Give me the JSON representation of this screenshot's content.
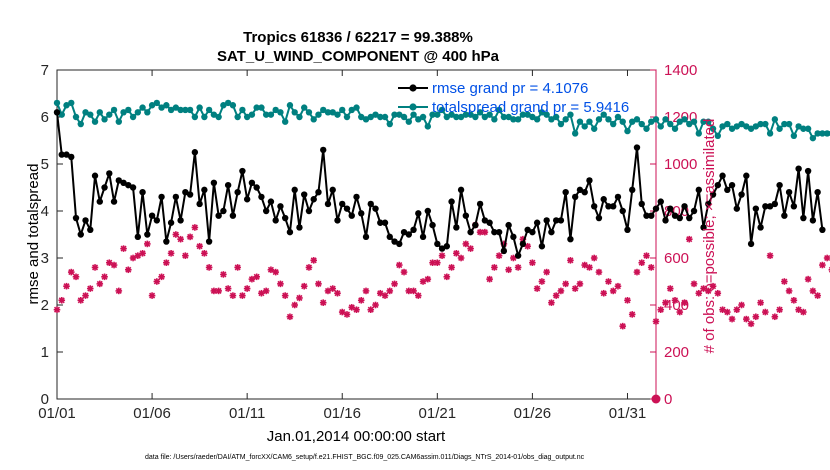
{
  "chart_data": {
    "type": "line",
    "title_line1": "Tropics 61836 / 62217 = 99.388%",
    "title_line2": "SAT_U_WIND_COMPONENT @ 400 hPa",
    "xlabel": "Jan.01,2014 00:00:00 start",
    "ylabel_left": "rmse and totalspread",
    "ylabel_right": "# of obs: o=possible; ×=assimilated",
    "x_ticks": [
      "01/01",
      "01/06",
      "01/11",
      "01/16",
      "01/21",
      "01/26",
      "01/31"
    ],
    "x_tick_days": [
      0,
      5,
      10,
      15,
      20,
      25,
      30
    ],
    "xlim_days": [
      0,
      31.5
    ],
    "y_left_ticks": [
      "0",
      "1",
      "2",
      "3",
      "4",
      "5",
      "6",
      "7"
    ],
    "ylim_left": [
      0,
      7
    ],
    "y_right_ticks": [
      "0",
      "200",
      "400",
      "600",
      "800",
      "1000",
      "1200",
      "1400"
    ],
    "ylim_right": [
      0,
      1400
    ],
    "legend": [
      "rmse grand pr = 4.1076",
      "totalspread grand pr = 5.9416"
    ],
    "colors": {
      "rmse": "#000000",
      "totalspread": "#008080",
      "obs_count": "#cc1155",
      "right_axis": "#cc1155",
      "legend_text": "#0050e6"
    },
    "series": [
      {
        "name": "rmse",
        "axis": "left",
        "values": [
          6.1,
          5.2,
          5.2,
          5.15,
          3.85,
          3.5,
          3.8,
          3.6,
          4.75,
          4.2,
          4.5,
          4.8,
          4.2,
          4.65,
          4.6,
          4.55,
          4.5,
          3.45,
          4.4,
          3.5,
          3.9,
          3.8,
          4.3,
          3.35,
          3.75,
          4.3,
          3.8,
          4.4,
          4.35,
          5.25,
          4.15,
          4.45,
          3.35,
          4.6,
          3.9,
          4.0,
          4.55,
          3.9,
          4.4,
          4.85,
          4.25,
          4.6,
          4.5,
          4.3,
          4.0,
          4.2,
          3.8,
          4.1,
          3.85,
          3.55,
          4.45,
          3.65,
          4.35,
          4.0,
          4.25,
          4.4,
          5.3,
          4.15,
          4.45,
          3.8,
          4.15,
          4.05,
          3.9,
          4.3,
          3.95,
          3.45,
          4.15,
          4.05,
          3.75,
          3.75,
          3.45,
          3.35,
          3.3,
          3.55,
          3.5,
          3.6,
          3.95,
          3.45,
          4.0,
          3.7,
          3.3,
          3.2,
          3.25,
          4.2,
          3.65,
          4.45,
          3.9,
          3.55,
          3.7,
          4.15,
          3.8,
          3.75,
          3.55,
          3.55,
          3.15,
          3.7,
          3.45,
          3.05,
          3.3,
          3.6,
          3.55,
          3.75,
          3.25,
          3.8,
          3.55,
          3.8,
          3.8,
          4.4,
          3.4,
          4.3,
          4.45,
          4.4,
          4.65,
          4.1,
          3.85,
          4.25,
          4.1,
          4.1,
          4.3,
          4.0,
          3.6,
          4.45,
          5.35,
          4.15,
          3.9,
          3.9,
          4.05,
          4.2,
          3.8,
          4.05,
          3.9,
          3.85,
          4.1,
          3.85,
          4.0,
          4.45,
          3.65,
          4.15,
          4.35,
          4.55,
          4.75,
          4.45,
          4.55,
          4.05,
          4.35,
          4.75,
          3.3,
          4.05,
          3.65,
          4.1,
          4.1,
          4.15,
          4.55,
          3.9,
          4.4,
          4.1,
          4.9,
          3.85,
          4.85,
          3.8,
          4.4,
          3.6
        ]
      },
      {
        "name": "totalspread",
        "axis": "left",
        "values": [
          6.3,
          6.05,
          6.25,
          6.3,
          6.0,
          5.85,
          6.1,
          6.05,
          5.9,
          6.1,
          5.95,
          6.05,
          6.15,
          5.9,
          6.1,
          6.15,
          6.0,
          6.1,
          6.2,
          6.1,
          6.25,
          6.3,
          6.2,
          6.25,
          6.15,
          6.2,
          6.15,
          6.15,
          6.15,
          6.0,
          6.2,
          6.0,
          6.15,
          6.05,
          6.0,
          6.25,
          6.3,
          6.25,
          6.0,
          6.15,
          6.0,
          6.05,
          6.2,
          6.2,
          6.05,
          6.05,
          6.15,
          6.1,
          5.9,
          6.25,
          6.1,
          6.0,
          6.2,
          6.1,
          5.95,
          6.05,
          6.15,
          6.1,
          6.1,
          6.05,
          6.15,
          6.0,
          6.15,
          6.2,
          6.0,
          5.95,
          6.0,
          6.05,
          6.0,
          6.0,
          5.85,
          6.05,
          6.05,
          6.0,
          5.9,
          6.05,
          5.95,
          6.0,
          5.8,
          6.05,
          6.05,
          6.15,
          6.0,
          6.05,
          6.0,
          6.0,
          6.05,
          6.05,
          6.0,
          6.1,
          6.0,
          6.05,
          5.95,
          6.15,
          6.0,
          6.0,
          5.95,
          5.95,
          6.05,
          6.05,
          6.0,
          5.95,
          6.1,
          6.05,
          5.95,
          6.0,
          5.85,
          5.95,
          6.05,
          5.65,
          5.9,
          5.8,
          5.9,
          5.75,
          5.95,
          6.05,
          5.95,
          5.85,
          6.0,
          5.9,
          5.7,
          5.9,
          5.95,
          5.85,
          5.75,
          5.9,
          5.95,
          5.8,
          5.95,
          5.85,
          5.75,
          5.9,
          5.95,
          5.85,
          5.9,
          5.65,
          5.9,
          5.9,
          5.75,
          5.6,
          5.8,
          5.85,
          5.75,
          5.8,
          5.85,
          5.8,
          5.75,
          5.8,
          5.85,
          5.85,
          5.65,
          5.95,
          5.75,
          5.85,
          5.85,
          5.6,
          5.8,
          5.75,
          5.75,
          5.55,
          5.65,
          5.65,
          5.65,
          5.65
        ]
      },
      {
        "name": "obs_assimilated",
        "axis": "right",
        "values": [
          380,
          420,
          480,
          540,
          520,
          420,
          440,
          470,
          560,
          490,
          520,
          580,
          570,
          460,
          640,
          550,
          600,
          610,
          620,
          660,
          440,
          500,
          520,
          580,
          620,
          700,
          680,
          610,
          690,
          730,
          650,
          620,
          560,
          460,
          460,
          530,
          470,
          440,
          560,
          440,
          470,
          510,
          520,
          450,
          460,
          550,
          540,
          490,
          440,
          350,
          400,
          430,
          480,
          560,
          590,
          490,
          410,
          460,
          470,
          450,
          370,
          360,
          390,
          380,
          420,
          460,
          380,
          400,
          450,
          440,
          460,
          490,
          570,
          540,
          460,
          460,
          440,
          500,
          510,
          580,
          580,
          610,
          520,
          560,
          620,
          600,
          660,
          640,
          740,
          710,
          710,
          510,
          560,
          610,
          660,
          550,
          600,
          560,
          680,
          650,
          580,
          470,
          500,
          540,
          410,
          440,
          460,
          490,
          590,
          470,
          490,
          570,
          560,
          600,
          540,
          450,
          500,
          460,
          480,
          310,
          420,
          360,
          540,
          580,
          610,
          560,
          330,
          380,
          410,
          470,
          420,
          370,
          410,
          680,
          490,
          450,
          470,
          460,
          480,
          450,
          380,
          370,
          340,
          380,
          400,
          340,
          320,
          350,
          410,
          370,
          610,
          350,
          380,
          500,
          460,
          420,
          380,
          370,
          510,
          460,
          440,
          570,
          600,
          550
        ]
      }
    ]
  },
  "footer_text": "data file: /Users/raeder/DAI/ATM_forcXX/CAM6_setup/f.e21.FHIST_BGC.f09_025.CAM6assim.011/Diags_NTrS_2014-01/obs_diag_output.nc"
}
